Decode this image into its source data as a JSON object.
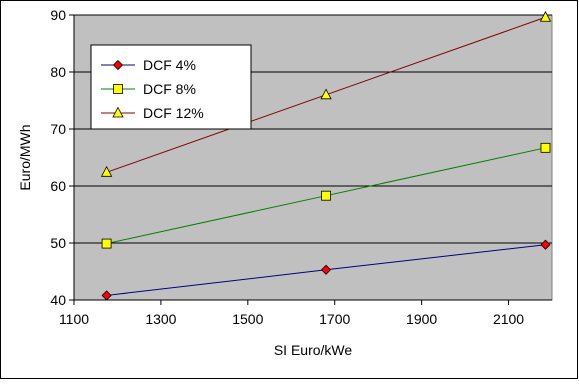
{
  "chart_data": {
    "type": "line",
    "title": "",
    "xlabel": "SI Euro/kWe",
    "ylabel": "Euro/MWh",
    "xlim": [
      1100,
      2200
    ],
    "ylim": [
      40,
      90
    ],
    "xticks": [
      1100,
      1300,
      1500,
      1700,
      1900,
      2100
    ],
    "yticks": [
      40,
      50,
      60,
      70,
      80,
      90
    ],
    "grid": "horizontal",
    "plot_background": "#c0c0c0",
    "legend_position": "top-left",
    "x": [
      1175,
      1680,
      2185
    ],
    "series": [
      {
        "name": "DCF 4%",
        "values": [
          40.8,
          45.3,
          49.7
        ],
        "color": "#000080",
        "marker": "diamond",
        "marker_color": "#ff0000"
      },
      {
        "name": "DCF 8%",
        "values": [
          49.9,
          58.3,
          66.7
        ],
        "color": "#008000",
        "marker": "square",
        "marker_color": "#ffff00"
      },
      {
        "name": "DCF 12%",
        "values": [
          62.4,
          76.0,
          89.6
        ],
        "color": "#800000",
        "marker": "triangle",
        "marker_color": "#ffff00"
      }
    ]
  }
}
